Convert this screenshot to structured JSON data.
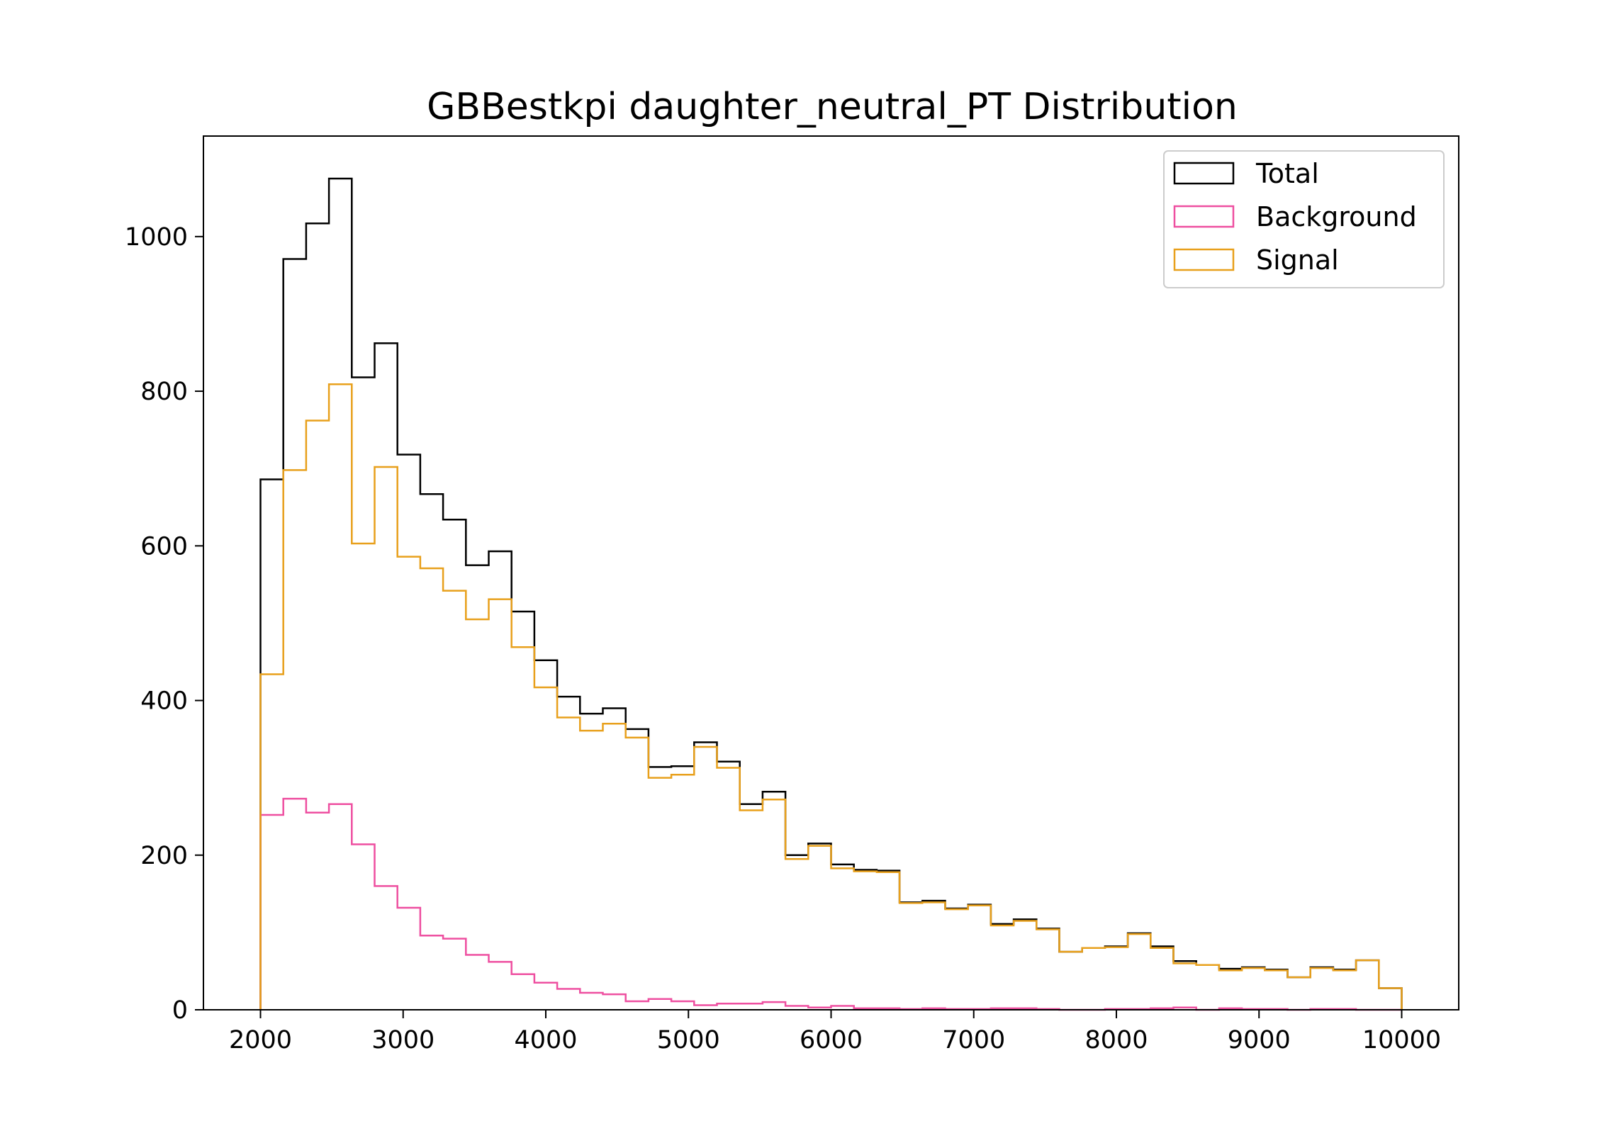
{
  "chart_data": {
    "type": "histogram",
    "title": "GBBestkpi daughter_neutral_PT Distribution",
    "xlabel": "",
    "ylabel": "",
    "xlim": [
      1600,
      10400
    ],
    "ylim": [
      0,
      1130
    ],
    "xticks": [
      2000,
      3000,
      4000,
      5000,
      6000,
      7000,
      8000,
      9000,
      10000
    ],
    "yticks": [
      0,
      200,
      400,
      600,
      800,
      1000
    ],
    "bin_edges": [
      2000,
      2160,
      2320,
      2480,
      2640,
      2800,
      2960,
      3120,
      3280,
      3440,
      3600,
      3760,
      3920,
      4080,
      4240,
      4400,
      4560,
      4720,
      4880,
      5040,
      5200,
      5360,
      5520,
      5680,
      5840,
      6000,
      6160,
      6320,
      6480,
      6640,
      6800,
      6960,
      7120,
      7280,
      7440,
      7600,
      7760,
      7920,
      8080,
      8240,
      8400,
      8560,
      8720,
      8880,
      9040,
      9200,
      9360,
      9520,
      9680,
      9840,
      10000
    ],
    "series": [
      {
        "name": "Total",
        "color": "#000000",
        "values": [
          686,
          971,
          1017,
          1075,
          818,
          862,
          718,
          667,
          634,
          575,
          593,
          515,
          452,
          405,
          383,
          390,
          363,
          314,
          315,
          346,
          321,
          266,
          282,
          200,
          215,
          188,
          181,
          180,
          139,
          141,
          131,
          136,
          111,
          117,
          105,
          75,
          80,
          82,
          99,
          82,
          63,
          58,
          53,
          55,
          52,
          42,
          55,
          52,
          64,
          28
        ]
      },
      {
        "name": "Background",
        "color": "#ee4fa0",
        "values": [
          252,
          273,
          255,
          266,
          214,
          160,
          132,
          96,
          92,
          71,
          62,
          46,
          35,
          27,
          22,
          20,
          11,
          14,
          11,
          6,
          8,
          8,
          10,
          5,
          3,
          5,
          2,
          2,
          1,
          2,
          1,
          1,
          2,
          2,
          1,
          0,
          0,
          1,
          1,
          2,
          3,
          0,
          2,
          1,
          1,
          0,
          1,
          1,
          0,
          0
        ]
      },
      {
        "name": "Signal",
        "color": "#e8a01c",
        "values": [
          434,
          698,
          762,
          809,
          603,
          702,
          586,
          571,
          542,
          505,
          531,
          469,
          417,
          378,
          361,
          370,
          352,
          300,
          304,
          340,
          313,
          258,
          272,
          195,
          212,
          183,
          179,
          178,
          138,
          139,
          130,
          135,
          109,
          115,
          104,
          75,
          80,
          81,
          98,
          80,
          60,
          58,
          51,
          54,
          51,
          42,
          54,
          51,
          64,
          28
        ]
      }
    ],
    "legend": {
      "position": "top-right",
      "entries": [
        "Total",
        "Background",
        "Signal"
      ]
    },
    "grid": false
  }
}
